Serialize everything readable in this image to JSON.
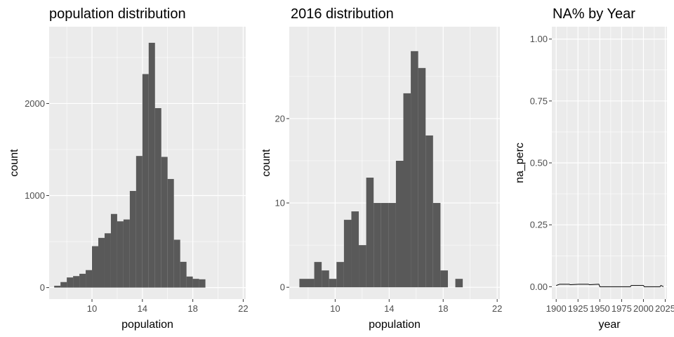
{
  "chart_data": [
    {
      "type": "bar",
      "subtype": "histogram",
      "title": "population  distribution",
      "xlabel": "population",
      "ylabel": "count",
      "xlim": [
        6.6,
        22.2
      ],
      "ylim": [
        -125,
        2835
      ],
      "x_ticks": [
        10,
        14,
        18,
        22
      ],
      "y_ticks": [
        0,
        1000,
        2000
      ],
      "grid": true,
      "bin_width": 0.5,
      "bin_start": 7.0,
      "values": [
        20,
        60,
        110,
        125,
        150,
        190,
        450,
        540,
        590,
        800,
        720,
        740,
        1050,
        1430,
        2320,
        2660,
        1950,
        1420,
        1180,
        520,
        280,
        120,
        95,
        90
      ]
    },
    {
      "type": "bar",
      "subtype": "histogram",
      "title": "2016 distribution",
      "xlabel": "population",
      "ylabel": "count",
      "xlim": [
        6.6,
        22.2
      ],
      "ylim": [
        -1.4,
        30.9
      ],
      "x_ticks": [
        10,
        14,
        18,
        22
      ],
      "y_ticks": [
        0,
        10,
        20
      ],
      "grid": true,
      "bin_width": 0.55,
      "bin_start": 7.35,
      "values": [
        1,
        1,
        3,
        2,
        1,
        3,
        8,
        9,
        5,
        13,
        10,
        10,
        10,
        15,
        23,
        28,
        26,
        18,
        10,
        2,
        0,
        1
      ]
    },
    {
      "type": "line",
      "title": "NA% by Year",
      "xlabel": "year",
      "ylabel": "na_perc",
      "xlim": [
        1895,
        2027
      ],
      "ylim": [
        -0.05,
        1.05
      ],
      "x_ticks": [
        1900,
        1925,
        1950,
        1975,
        2000,
        2025
      ],
      "y_ticks": [
        "0.00",
        "0.25",
        "0.50",
        "0.75",
        "1.00"
      ],
      "grid": true,
      "x": [
        1900,
        1904,
        1905,
        1915,
        1916,
        1926,
        1927,
        1937,
        1938,
        1948,
        1949,
        1950,
        1985,
        1986,
        2000,
        2001,
        2019,
        2020,
        2023
      ],
      "y": [
        0.005,
        0.01,
        0.01,
        0.01,
        0.008,
        0.01,
        0.01,
        0.01,
        0.008,
        0.01,
        0.01,
        0.0,
        0.0,
        0.005,
        0.005,
        0.0,
        0.0,
        0.005,
        0.0
      ]
    }
  ]
}
